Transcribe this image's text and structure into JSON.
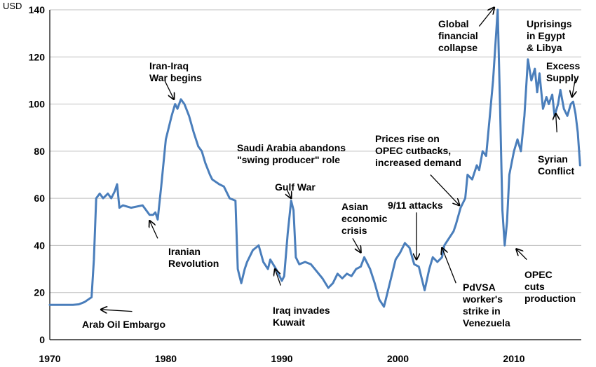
{
  "chart_data": {
    "type": "line",
    "title": "",
    "xlabel": "",
    "ylabel": "USD",
    "xlim": [
      1970,
      2015.8
    ],
    "ylim": [
      0,
      140
    ],
    "grid": true,
    "x_ticks": [
      1970,
      1980,
      1990,
      2000,
      2010
    ],
    "y_ticks": [
      0,
      20,
      40,
      60,
      80,
      100,
      120,
      140
    ],
    "series": [
      {
        "name": "",
        "color": "#4a7ebb",
        "x": [
          1970.0,
          1971.0,
          1972.0,
          1972.5,
          1973.0,
          1973.3,
          1973.6,
          1973.8,
          1974.0,
          1974.3,
          1974.6,
          1975.0,
          1975.3,
          1975.6,
          1975.8,
          1976.0,
          1976.3,
          1977.0,
          1978.0,
          1978.6,
          1978.9,
          1979.1,
          1979.3,
          1979.6,
          1980.0,
          1980.5,
          1980.8,
          1981.0,
          1981.3,
          1981.6,
          1982.0,
          1982.4,
          1982.8,
          1983.1,
          1983.4,
          1983.8,
          1984.0,
          1984.6,
          1985.0,
          1985.5,
          1986.0,
          1986.2,
          1986.5,
          1986.8,
          1987.0,
          1987.5,
          1988.0,
          1988.4,
          1988.8,
          1989.0,
          1989.5,
          1990.0,
          1990.2,
          1990.5,
          1990.8,
          1991.0,
          1991.2,
          1991.5,
          1992.0,
          1992.5,
          1993.0,
          1993.5,
          1994.0,
          1994.4,
          1994.8,
          1995.2,
          1995.6,
          1996.0,
          1996.4,
          1996.8,
          1997.1,
          1997.6,
          1998.0,
          1998.4,
          1998.8,
          1999.0,
          1999.4,
          1999.8,
          2000.2,
          2000.6,
          2001.0,
          2001.4,
          2001.8,
          2002.0,
          2002.3,
          2002.7,
          2003.0,
          2003.4,
          2003.8,
          2004.0,
          2004.4,
          2004.8,
          2005.0,
          2005.4,
          2005.8,
          2006.0,
          2006.4,
          2006.8,
          2007.0,
          2007.3,
          2007.6,
          2007.9,
          2008.2,
          2008.4,
          2008.6,
          2008.8,
          2009.0,
          2009.2,
          2009.4,
          2009.6,
          2009.8,
          2010.0,
          2010.3,
          2010.6,
          2010.9,
          2011.2,
          2011.5,
          2011.8,
          2012.0,
          2012.2,
          2012.5,
          2012.8,
          2013.0,
          2013.3,
          2013.5,
          2013.8,
          2014.0,
          2014.3,
          2014.6,
          2014.9,
          2015.1,
          2015.3,
          2015.5,
          2015.7
        ],
        "values": [
          14.8,
          14.8,
          14.8,
          15.0,
          16.0,
          17.0,
          18.0,
          34.0,
          60.0,
          62.0,
          60.0,
          62.0,
          60.0,
          63.0,
          66.0,
          56.0,
          57.0,
          56.0,
          57.0,
          53.0,
          53.0,
          54.0,
          51.0,
          65.0,
          85.0,
          95.0,
          100.0,
          98.0,
          102.0,
          100.0,
          95.0,
          88.0,
          82.0,
          80.0,
          75.0,
          70.0,
          68.0,
          66.0,
          65.0,
          60.0,
          59.0,
          30.0,
          24.0,
          30.0,
          33.0,
          38.0,
          40.0,
          33.0,
          30.0,
          34.0,
          30.0,
          25.0,
          27.0,
          45.0,
          59.0,
          55.0,
          35.0,
          32.0,
          33.0,
          32.0,
          29.0,
          26.0,
          22.0,
          24.0,
          28.0,
          26.0,
          28.0,
          27.0,
          30.0,
          31.0,
          35.0,
          30.0,
          24.0,
          17.0,
          14.0,
          18.0,
          26.0,
          34.0,
          37.0,
          41.0,
          39.0,
          32.0,
          31.0,
          27.0,
          21.0,
          30.0,
          35.0,
          33.0,
          35.0,
          40.0,
          43.0,
          46.0,
          49.0,
          56.0,
          60.0,
          70.0,
          68.0,
          74.0,
          72.0,
          80.0,
          78.0,
          94.0,
          110.0,
          125.0,
          140.0,
          100.0,
          55.0,
          40.0,
          50.0,
          70.0,
          75.0,
          80.0,
          85.0,
          80.0,
          95.0,
          119.0,
          110.0,
          115.0,
          105.0,
          113.0,
          98.0,
          103.0,
          100.0,
          104.0,
          95.0,
          100.0,
          106.0,
          98.0,
          95.0,
          100.0,
          101.0,
          96.0,
          88.0,
          74.0
        ]
      }
    ],
    "annotations": [
      {
        "lines": [
          "Arab Oil Embargo"
        ],
        "arrow_from": [
          1977.1,
          12.0
        ],
        "arrow_to": [
          1974.4,
          12.8
        ]
      },
      {
        "lines": [
          "Iran-Iraq",
          "War begins"
        ],
        "arrow_from": [
          1979.9,
          110.0
        ],
        "arrow_to": [
          1980.7,
          102.0
        ]
      },
      {
        "lines": [
          "Iranian",
          "Revolution"
        ],
        "arrow_from": [
          1979.3,
          43.0
        ],
        "arrow_to": [
          1978.6,
          50.5
        ]
      },
      {
        "lines": [
          "Saudi Arabia abandons",
          "\"swing producer\" role"
        ],
        "arrow_from": null,
        "arrow_to": null
      },
      {
        "lines": [
          "Gulf War"
        ],
        "arrow_from": [
          1990.4,
          64.0
        ],
        "arrow_to": [
          1990.8,
          60.0
        ]
      },
      {
        "lines": [
          "Iraq invades",
          "Kuwait"
        ],
        "arrow_from": [
          1989.9,
          23.0
        ],
        "arrow_to": [
          1989.4,
          30.0
        ]
      },
      {
        "lines": [
          "Asian",
          "economic",
          "crisis"
        ],
        "arrow_from": [
          1996.1,
          43.0
        ],
        "arrow_to": [
          1996.8,
          37.0
        ]
      },
      {
        "lines": [
          "9/11 attacks"
        ],
        "arrow_from": [
          2001.6,
          54.0
        ],
        "arrow_to": [
          2001.6,
          34.0
        ]
      },
      {
        "lines": [
          "Prices rise on",
          "OPEC cutbacks,",
          "increased demand"
        ],
        "arrow_from": [
          2002.8,
          70.0
        ],
        "arrow_to": [
          2005.3,
          57.0
        ]
      },
      {
        "lines": [
          "PdVSA",
          "worker's",
          "strike in",
          "Venezuela"
        ],
        "arrow_from": [
          2005.0,
          24.0
        ],
        "arrow_to": [
          2003.8,
          39.0
        ]
      },
      {
        "lines": [
          "Global",
          "financial",
          "collapse"
        ],
        "arrow_from": [
          2007.0,
          133.0
        ],
        "arrow_to": [
          2008.3,
          141.0
        ]
      },
      {
        "lines": [
          "OPEC",
          "cuts",
          "production"
        ],
        "arrow_from": [
          2011.1,
          34.0
        ],
        "arrow_to": [
          2010.2,
          38.5
        ]
      },
      {
        "lines": [
          "Uprisings",
          "in Egypt",
          "& Libya"
        ],
        "arrow_from": null,
        "arrow_to": null
      },
      {
        "lines": [
          "Excess",
          "Supply"
        ],
        "arrow_from": [
          2015.3,
          111.0
        ],
        "arrow_to": [
          2015.0,
          103.0
        ]
      },
      {
        "lines": [
          "Syrian",
          "Conflict"
        ],
        "arrow_from": [
          2013.7,
          88.0
        ],
        "arrow_to": [
          2013.6,
          96.0
        ]
      }
    ]
  }
}
